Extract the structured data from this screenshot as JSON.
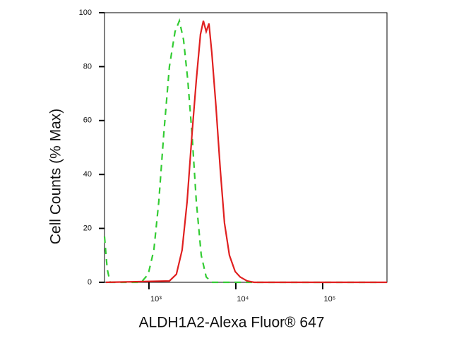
{
  "chart_data": {
    "type": "line",
    "x_label": "ALDH1A2-Alexa Fluor® 647",
    "y_label": "Cell Counts (% Max)",
    "x_scale": "log",
    "xlim": [
      308,
      550000
    ],
    "xticks": [
      {
        "value": 1000,
        "label": "10³"
      },
      {
        "value": 10000,
        "label": "10⁴"
      },
      {
        "value": 100000,
        "label": "10⁵"
      }
    ],
    "ylim": [
      0,
      100
    ],
    "yticks": [
      0,
      20,
      40,
      60,
      80,
      100
    ],
    "series": [
      {
        "color": "#33cc33",
        "dashed": true,
        "x": [
          308,
          331,
          357,
          815,
          982,
          1140,
          1300,
          1480,
          1720,
          2000,
          2240,
          2500,
          2800,
          3130,
          3510,
          4000,
          4560,
          5300,
          473000
        ],
        "values": [
          17,
          5,
          0,
          0,
          3,
          12,
          30,
          55,
          80,
          93,
          97,
          90,
          75,
          55,
          30,
          10,
          2,
          0,
          0
        ]
      },
      {
        "color": "#e02020",
        "dashed": false,
        "x": [
          319,
          1720,
          2070,
          2410,
          2750,
          3130,
          3510,
          3920,
          4230,
          4560,
          4910,
          5300,
          5920,
          6620,
          7410,
          8450,
          9820,
          11200,
          13500,
          16300,
          550000
        ],
        "values": [
          0,
          0.5,
          3,
          12,
          30,
          55,
          75,
          92,
          97,
          93,
          96,
          85,
          65,
          42,
          22,
          10,
          4,
          2,
          0.5,
          0,
          0
        ]
      }
    ]
  }
}
